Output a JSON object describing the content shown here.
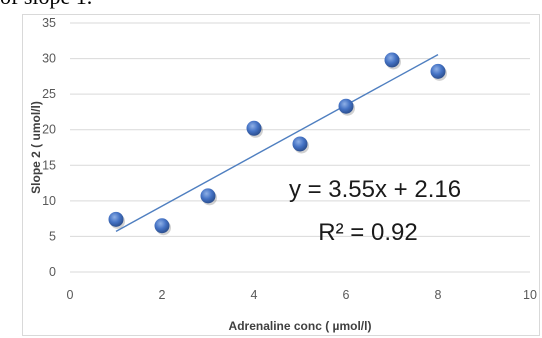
{
  "caption_fragment": "of slope 1.",
  "chart_data": {
    "type": "scatter",
    "title": "",
    "xlabel": "Adrenaline conc ( µmol/l)",
    "ylabel": "Slope 2 ( umol/l)",
    "xlim": [
      0,
      10
    ],
    "ylim": [
      0,
      35
    ],
    "x_ticks": [
      0,
      2,
      4,
      6,
      8,
      10
    ],
    "y_ticks": [
      0,
      5,
      10,
      15,
      20,
      25,
      30,
      35
    ],
    "x_tick_labels": [
      "0",
      "2",
      "4",
      "6",
      "8",
      "10"
    ],
    "y_tick_labels": [
      "0",
      "5",
      "10",
      "15",
      "20",
      "25",
      "30",
      "35"
    ],
    "grid": "horizontal",
    "points": [
      {
        "x": 1,
        "y": 7.4
      },
      {
        "x": 2,
        "y": 6.5
      },
      {
        "x": 3,
        "y": 10.7
      },
      {
        "x": 4,
        "y": 20.2
      },
      {
        "x": 5,
        "y": 18.0
      },
      {
        "x": 6,
        "y": 23.3
      },
      {
        "x": 7,
        "y": 29.8
      },
      {
        "x": 8,
        "y": 28.2
      }
    ],
    "trendline": {
      "slope": 3.55,
      "intercept": 2.16,
      "x_range": [
        1,
        8
      ]
    },
    "annotations": {
      "equation": "y = 3.55x + 2.16",
      "r_squared": "R² = 0.92"
    },
    "colors": {
      "marker": "#4472c4",
      "trendline": "#4f7fc0",
      "grid": "#d9d9d9"
    }
  }
}
